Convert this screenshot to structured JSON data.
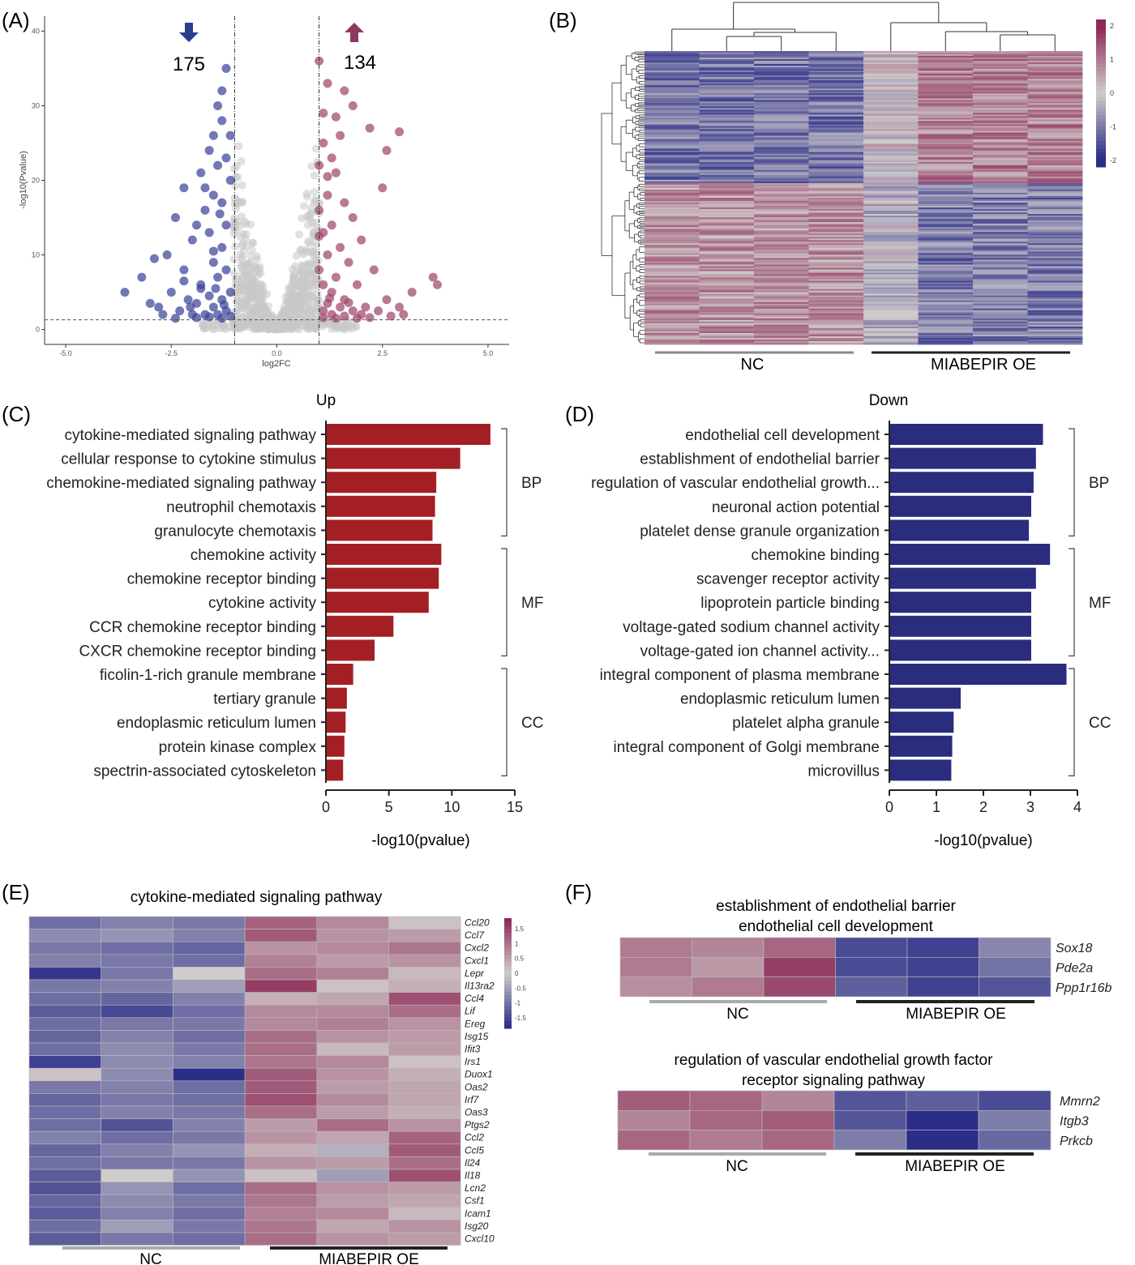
{
  "colors": {
    "up": "#a31f24",
    "down": "#2a2c7e",
    "sig_up": "#a0456c",
    "sig_down": "#3c4299",
    "ns": "#c8c8c8",
    "heat_low": "#2b2d88",
    "heat_mid": "#d0cccc",
    "heat_high": "#8e2a57"
  },
  "panels": {
    "A": "(A)",
    "B": "(B)",
    "C": "(C)",
    "D": "(D)",
    "E": "(E)",
    "F": "(F)"
  },
  "chart_data": [
    {
      "id": "A",
      "type": "scatter",
      "xlabel": "log2FC",
      "ylabel": "-log10(Pvalue)",
      "xlim": [
        -5.5,
        5.5
      ],
      "ylim": [
        -2,
        42
      ],
      "xticks": [
        "-5.0",
        "-2.5",
        "0.0",
        "2.5",
        "5.0"
      ],
      "yticks": [
        "0",
        "10",
        "20",
        "30",
        "40"
      ],
      "x_threshold": [
        -1,
        1
      ],
      "y_threshold": 1.3,
      "down_count": "175",
      "up_count": "134",
      "down_points": [
        [
          -1.2,
          35
        ],
        [
          -1.3,
          32
        ],
        [
          -1.4,
          30
        ],
        [
          -1.3,
          28
        ],
        [
          -1.5,
          26
        ],
        [
          -1.6,
          24
        ],
        [
          -1.2,
          23
        ],
        [
          -1.4,
          22
        ],
        [
          -1.8,
          21
        ],
        [
          -1.1,
          20
        ],
        [
          -2.2,
          19
        ],
        [
          -1.5,
          18
        ],
        [
          -1.3,
          17
        ],
        [
          -1.7,
          16
        ],
        [
          -2.4,
          15
        ],
        [
          -1.2,
          14
        ],
        [
          -1.6,
          13
        ],
        [
          -2.0,
          12
        ],
        [
          -1.3,
          11
        ],
        [
          -2.6,
          10
        ],
        [
          -1.5,
          9
        ],
        [
          -2.9,
          9.5
        ],
        [
          -1.2,
          8
        ],
        [
          -2.2,
          8
        ],
        [
          -3.2,
          7
        ],
        [
          -1.4,
          7
        ],
        [
          -1.8,
          6
        ],
        [
          -2.5,
          5
        ],
        [
          -1.1,
          5
        ],
        [
          -3.6,
          5
        ],
        [
          -1.6,
          4.5
        ],
        [
          -2.1,
          4
        ],
        [
          -1.3,
          4
        ],
        [
          -2.8,
          3
        ],
        [
          -1.9,
          3.5
        ],
        [
          -1.5,
          3
        ],
        [
          -1.2,
          2.5
        ],
        [
          -2.3,
          2.5
        ],
        [
          -1.7,
          2
        ],
        [
          -1.4,
          2
        ],
        [
          -2.0,
          2
        ],
        [
          -1.1,
          1.8
        ],
        [
          -1.6,
          1.7
        ],
        [
          -3.0,
          3.5
        ],
        [
          -2.7,
          2
        ],
        [
          -1.9,
          1.6
        ],
        [
          -1.3,
          1.5
        ],
        [
          -2.4,
          1.5
        ],
        [
          -1.8,
          5.5
        ],
        [
          -2.2,
          6.5
        ],
        [
          -1.5,
          10.5
        ],
        [
          -1.9,
          14
        ],
        [
          -1.1,
          26
        ],
        [
          -1.7,
          19
        ],
        [
          -1.35,
          15.5
        ],
        [
          -2.05,
          3
        ],
        [
          -1.25,
          3.3
        ],
        [
          -1.45,
          5.5
        ]
      ],
      "up_points": [
        [
          1.0,
          36
        ],
        [
          1.2,
          33
        ],
        [
          1.6,
          32
        ],
        [
          1.8,
          30
        ],
        [
          1.1,
          29
        ],
        [
          2.2,
          27
        ],
        [
          1.5,
          26
        ],
        [
          1.1,
          25
        ],
        [
          2.6,
          24
        ],
        [
          1.3,
          23
        ],
        [
          1.0,
          22
        ],
        [
          1.4,
          21
        ],
        [
          2.5,
          19
        ],
        [
          1.2,
          18
        ],
        [
          1.6,
          17
        ],
        [
          1.0,
          16
        ],
        [
          1.8,
          15
        ],
        [
          1.3,
          14
        ],
        [
          1.1,
          13
        ],
        [
          2.0,
          12
        ],
        [
          1.5,
          11
        ],
        [
          1.2,
          10
        ],
        [
          1.7,
          9
        ],
        [
          1.0,
          8
        ],
        [
          2.3,
          8
        ],
        [
          1.4,
          7
        ],
        [
          3.7,
          7
        ],
        [
          1.1,
          6
        ],
        [
          1.9,
          6
        ],
        [
          3.2,
          5
        ],
        [
          1.3,
          5
        ],
        [
          2.6,
          4
        ],
        [
          1.6,
          4
        ],
        [
          3.8,
          6
        ],
        [
          1.2,
          3.5
        ],
        [
          2.1,
          3
        ],
        [
          1.5,
          3
        ],
        [
          2.9,
          3
        ],
        [
          1.1,
          2.5
        ],
        [
          1.8,
          2.5
        ],
        [
          2.4,
          2.5
        ],
        [
          1.3,
          2
        ],
        [
          2.0,
          2
        ],
        [
          1.6,
          1.8
        ],
        [
          1.1,
          1.6
        ],
        [
          2.7,
          1.8
        ],
        [
          1.4,
          1.5
        ],
        [
          3.0,
          2
        ],
        [
          1.9,
          1.5
        ],
        [
          2.2,
          1.6
        ],
        [
          1.0,
          12.5
        ],
        [
          1.2,
          20.5
        ],
        [
          1.4,
          28.5
        ],
        [
          2.9,
          26.5
        ],
        [
          1.7,
          3.6
        ],
        [
          1.25,
          4.2
        ]
      ]
    },
    {
      "id": "B",
      "type": "heatmap",
      "groups": [
        "NC",
        "MIABEPIR OE"
      ],
      "colorbar_ticks": [
        "2",
        "1",
        "0",
        "-1",
        "-2"
      ]
    },
    {
      "id": "C",
      "type": "bar",
      "orientation": "horizontal",
      "title": "Up",
      "xlabel": "-log10(pvalue)",
      "xlim": [
        0,
        15
      ],
      "xticks": [
        "0",
        "5",
        "10",
        "15"
      ],
      "categories": [
        "cytokine-mediated signaling pathway",
        "cellular response to cytokine stimulus",
        "chemokine-mediated signaling pathway",
        "neutrophil chemotaxis",
        "granulocyte chemotaxis",
        "chemokine activity",
        "chemokine receptor binding",
        "cytokine activity",
        "CCR chemokine receptor binding",
        "CXCR chemokine receptor binding",
        "ficolin-1-rich granule membrane",
        "tertiary granule",
        "endoplasmic reticulum lumen",
        "protein kinase complex",
        "spectrin-associated cytoskeleton"
      ],
      "values": [
        13.0,
        10.6,
        8.7,
        8.6,
        8.4,
        9.1,
        8.9,
        8.1,
        5.3,
        3.8,
        2.1,
        1.6,
        1.5,
        1.4,
        1.3
      ],
      "groups": [
        {
          "label": "BP",
          "from": 0,
          "to": 4
        },
        {
          "label": "MF",
          "from": 5,
          "to": 9
        },
        {
          "label": "CC",
          "from": 10,
          "to": 14
        }
      ]
    },
    {
      "id": "D",
      "type": "bar",
      "orientation": "horizontal",
      "title": "Down",
      "xlabel": "-log10(pvalue)",
      "xlim": [
        0,
        4
      ],
      "xticks": [
        "0",
        "1",
        "2",
        "3",
        "4"
      ],
      "categories": [
        "endothelial cell development",
        "establishment of endothelial barrier",
        "regulation of vascular endothelial growth...",
        "neuronal action potential",
        "platelet dense granule organization",
        "chemokine binding",
        "scavenger receptor activity",
        "lipoprotein particle binding",
        "voltage-gated sodium channel activity",
        "voltage-gated ion channel activity...",
        "integral component of plasma membrane",
        "endoplasmic reticulum lumen",
        "platelet alpha granule",
        "integral component of Golgi membrane",
        "microvillus"
      ],
      "values": [
        3.25,
        3.1,
        3.05,
        3.0,
        2.95,
        3.4,
        3.1,
        3.0,
        3.0,
        3.0,
        3.75,
        1.5,
        1.35,
        1.32,
        1.3
      ],
      "groups": [
        {
          "label": "BP",
          "from": 0,
          "to": 4
        },
        {
          "label": "MF",
          "from": 5,
          "to": 9
        },
        {
          "label": "CC",
          "from": 10,
          "to": 14
        }
      ]
    },
    {
      "id": "E",
      "type": "heatmap",
      "title": "cytokine-mediated signaling pathway",
      "groups": [
        "NC",
        "MIABEPIR OE"
      ],
      "genes": [
        "Ccl20",
        "Ccl7",
        "Cxcl2",
        "Cxcl1",
        "Lepr",
        "Il13ra2",
        "Ccl4",
        "Lif",
        "Ereg",
        "Isg15",
        "Ifit3",
        "Irs1",
        "Duox1",
        "Oas2",
        "Irf7",
        "Oas3",
        "Ptgs2",
        "Ccl2",
        "Ccl5",
        "Il24",
        "Il18",
        "Lcn2",
        "Csf1",
        "Icam1",
        "Isg20",
        "Cxcl10"
      ],
      "colorbar_ticks": [
        "1.5",
        "1",
        "0.5",
        "0",
        "-0.5",
        "-1",
        "-1.5"
      ],
      "values": [
        [
          -1.0,
          -0.8,
          -0.9,
          1.1,
          0.7,
          0.1
        ],
        [
          -0.7,
          -0.6,
          -0.8,
          1.2,
          0.6,
          0.5
        ],
        [
          -0.9,
          -1.0,
          -1.1,
          0.6,
          0.7,
          0.9
        ],
        [
          -0.8,
          -0.9,
          -1.0,
          0.8,
          0.5,
          0.6
        ],
        [
          -1.6,
          -0.9,
          0.0,
          1.0,
          0.8,
          0.2
        ],
        [
          -0.9,
          -0.8,
          -0.5,
          1.5,
          0.1,
          0.3
        ],
        [
          -1.0,
          -1.1,
          -0.8,
          0.3,
          0.4,
          1.3
        ],
        [
          -1.2,
          -1.4,
          -1.0,
          0.7,
          0.7,
          1.0
        ],
        [
          -1.0,
          -0.9,
          -0.9,
          0.7,
          0.8,
          0.6
        ],
        [
          -1.1,
          -0.8,
          -1.0,
          1.0,
          0.6,
          0.5
        ],
        [
          -1.0,
          -0.7,
          -0.9,
          1.0,
          0.2,
          0.5
        ],
        [
          -1.5,
          -0.7,
          -0.8,
          0.9,
          0.7,
          0.1
        ],
        [
          0.1,
          -0.7,
          -1.7,
          1.2,
          0.6,
          0.3
        ],
        [
          -0.9,
          -0.8,
          -1.0,
          1.2,
          0.5,
          0.4
        ],
        [
          -1.1,
          -0.9,
          -1.0,
          1.3,
          0.7,
          0.4
        ],
        [
          -1.0,
          -0.8,
          -0.9,
          1.0,
          0.5,
          0.3
        ],
        [
          -1.0,
          -1.3,
          -0.8,
          0.5,
          1.0,
          0.6
        ],
        [
          -0.8,
          -1.0,
          -0.9,
          0.6,
          0.4,
          1.1
        ],
        [
          -1.1,
          -0.8,
          -0.6,
          0.3,
          -0.3,
          1.2
        ],
        [
          -1.0,
          -0.9,
          -0.9,
          0.6,
          0.5,
          1.0
        ],
        [
          -1.2,
          0.0,
          -0.6,
          0.1,
          -0.5,
          1.3
        ],
        [
          -1.3,
          -0.6,
          -1.0,
          1.0,
          0.6,
          0.5
        ],
        [
          -1.1,
          -0.7,
          -0.9,
          0.9,
          0.5,
          0.4
        ],
        [
          -1.2,
          -0.8,
          -1.0,
          0.8,
          0.7,
          0.2
        ],
        [
          -1.0,
          -0.5,
          -0.9,
          0.9,
          0.4,
          0.6
        ],
        [
          -1.2,
          -0.9,
          -1.0,
          1.0,
          0.6,
          0.5
        ]
      ]
    },
    {
      "id": "F1",
      "type": "heatmap",
      "title_line1": "establishment of endothelial barrier",
      "title_line2": "endothelial cell development",
      "groups": [
        "NC",
        "MIABEPIR OE"
      ],
      "genes": [
        "Sox18",
        "Pde2a",
        "Ppp1r16b"
      ],
      "values": [
        [
          0.8,
          0.7,
          1.0,
          -1.3,
          -1.4,
          -0.7
        ],
        [
          0.8,
          0.5,
          1.4,
          -1.3,
          -1.4,
          -0.9
        ],
        [
          0.6,
          0.8,
          1.3,
          -1.1,
          -1.4,
          -1.2
        ]
      ]
    },
    {
      "id": "F2",
      "type": "heatmap",
      "title_line1": "regulation of vascular endothelial growth factor",
      "title_line2": "receptor signaling pathway",
      "groups": [
        "NC",
        "MIABEPIR OE"
      ],
      "genes": [
        "Mmrn2",
        "Itgb3",
        "Prkcb"
      ],
      "values": [
        [
          1.1,
          1.0,
          0.7,
          -1.2,
          -1.1,
          -1.3
        ],
        [
          0.7,
          1.0,
          1.1,
          -1.2,
          -1.6,
          -0.8
        ],
        [
          1.0,
          0.8,
          1.0,
          -0.8,
          -1.6,
          -1.0
        ]
      ]
    }
  ]
}
